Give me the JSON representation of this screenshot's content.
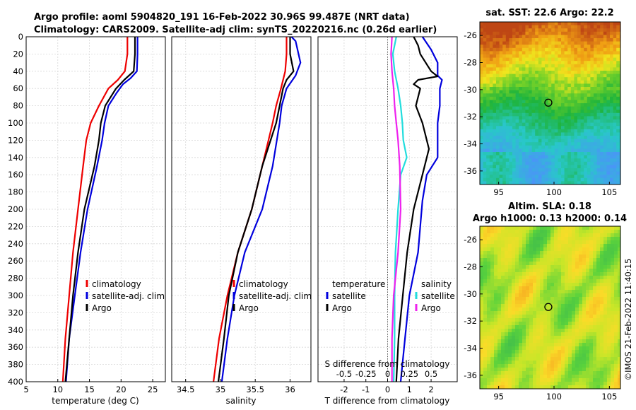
{
  "header": {
    "line1": "Argo profile: aoml 5904820_191 16-Feb-2022 30.96S 99.487E (NRT data)",
    "line2": "Climatology: CARS2009. Satellite-adj clim: synTS_20220216.nc (0.26d earlier)"
  },
  "colors": {
    "red": "#ee0000",
    "blue": "#0000dd",
    "black": "#000000",
    "cyan": "#22dddd",
    "magenta": "#ee22ee"
  },
  "chart_data": [
    {
      "type": "line",
      "name": "temperature",
      "xlabel": "temperature (deg C)",
      "xlim": [
        5,
        27
      ],
      "xticks": [
        5,
        10,
        15,
        20,
        25
      ],
      "ylim": [
        400,
        0
      ],
      "yticks": [
        0,
        20,
        40,
        60,
        80,
        100,
        120,
        140,
        160,
        180,
        200,
        220,
        240,
        260,
        280,
        300,
        320,
        340,
        360,
        380,
        400
      ],
      "legend": [
        "climatology",
        "satellite-adj. clim",
        "Argo"
      ],
      "series": [
        {
          "name": "climatology",
          "color": "red",
          "depth": [
            0,
            20,
            40,
            50,
            60,
            80,
            100,
            120,
            150,
            200,
            250,
            300,
            350,
            400
          ],
          "values": [
            21.0,
            21.0,
            20.6,
            19.5,
            18.0,
            16.5,
            15.2,
            14.5,
            14.0,
            13.2,
            12.4,
            11.8,
            11.2,
            10.8
          ]
        },
        {
          "name": "satellite-adj. clim",
          "color": "blue",
          "depth": [
            0,
            20,
            40,
            48,
            55,
            65,
            80,
            100,
            120,
            150,
            200,
            250,
            300,
            350,
            400
          ],
          "values": [
            22.6,
            22.6,
            22.5,
            21.5,
            20.3,
            19.3,
            18.0,
            17.4,
            17.0,
            16.2,
            14.7,
            13.6,
            12.7,
            11.8,
            11.3
          ]
        },
        {
          "name": "Argo",
          "color": "black",
          "depth": [
            0,
            20,
            40,
            50,
            60,
            80,
            100,
            120,
            150,
            200,
            250,
            300,
            350,
            400
          ],
          "values": [
            22.2,
            22.2,
            22.0,
            20.5,
            19.2,
            17.5,
            16.8,
            16.5,
            15.8,
            14.2,
            13.2,
            12.4,
            11.8,
            11.2
          ]
        }
      ]
    },
    {
      "type": "line",
      "name": "salinity",
      "xlabel": "salinity",
      "xlim": [
        34.3,
        36.3
      ],
      "xticks": [
        34.5,
        35,
        35.5,
        36
      ],
      "xticklabels": [
        "34.5",
        "35",
        "35.5",
        "36"
      ],
      "ylim": [
        400,
        0
      ],
      "legend": [
        "climatology",
        "satellite-adj. clim",
        "Argo"
      ],
      "series": [
        {
          "name": "climatology",
          "color": "red",
          "depth": [
            0,
            20,
            40,
            60,
            80,
            100,
            150,
            200,
            250,
            300,
            350,
            400
          ],
          "values": [
            35.95,
            35.95,
            35.93,
            35.87,
            35.8,
            35.75,
            35.6,
            35.45,
            35.25,
            35.1,
            34.98,
            34.9
          ]
        },
        {
          "name": "satellite-adj. clim",
          "color": "blue",
          "depth": [
            0,
            5,
            30,
            45,
            60,
            80,
            100,
            150,
            200,
            250,
            300,
            350,
            400
          ],
          "values": [
            36.02,
            36.08,
            36.15,
            36.08,
            35.95,
            35.88,
            35.85,
            35.75,
            35.6,
            35.35,
            35.2,
            35.1,
            35.02
          ]
        },
        {
          "name": "Argo",
          "color": "black",
          "depth": [
            0,
            20,
            40,
            50,
            60,
            80,
            100,
            150,
            200,
            250,
            300,
            350,
            400
          ],
          "values": [
            36.0,
            36.0,
            36.05,
            35.95,
            35.9,
            35.85,
            35.8,
            35.6,
            35.45,
            35.25,
            35.12,
            35.05,
            34.97
          ]
        }
      ]
    },
    {
      "type": "line",
      "name": "difference from climatology",
      "xlabel": "T difference from climatology",
      "xlabel2": "S difference from climatology",
      "xlim": [
        -3.2,
        3.2
      ],
      "xticks": [
        -2,
        -1,
        0,
        1,
        2
      ],
      "xticks2": [
        -0.5,
        -0.25,
        0,
        0.25,
        0.5
      ],
      "xticklabels2": [
        "-0.5",
        "-0.25",
        "0",
        "0.25",
        "0.5"
      ],
      "s_scale": 4,
      "ylim": [
        400,
        0
      ],
      "legend_left_title": "temperature",
      "legend_right_title": "salinity",
      "legend": [
        "satellite",
        "Argo",
        "satellite",
        "Argo"
      ],
      "series": [
        {
          "name": "temperature satellite",
          "color": "blue",
          "depth": [
            0,
            15,
            30,
            45,
            50,
            60,
            80,
            100,
            120,
            140,
            160,
            190,
            220,
            250,
            300,
            350,
            400
          ],
          "values": [
            1.6,
            2.0,
            2.3,
            2.3,
            2.5,
            2.4,
            2.4,
            2.3,
            2.3,
            2.3,
            1.8,
            1.6,
            1.5,
            1.4,
            1.0,
            0.8,
            0.6
          ]
        },
        {
          "name": "temperature Argo",
          "color": "black",
          "depth": [
            0,
            10,
            20,
            40,
            46,
            50,
            55,
            60,
            80,
            100,
            130,
            160,
            200,
            250,
            300,
            350,
            400
          ],
          "values": [
            1.2,
            1.4,
            1.5,
            2.0,
            2.3,
            1.4,
            1.2,
            1.5,
            1.3,
            1.6,
            1.9,
            1.6,
            1.2,
            0.9,
            0.7,
            0.5,
            0.4
          ]
        },
        {
          "name": "salinity satellite",
          "color": "cyan",
          "depth": [
            0,
            20,
            40,
            60,
            80,
            100,
            120,
            140,
            160,
            200,
            250,
            300,
            350,
            400
          ],
          "values": [
            0.1,
            0.06,
            0.08,
            0.12,
            0.15,
            0.17,
            0.18,
            0.22,
            0.15,
            0.12,
            0.09,
            0.08,
            0.08,
            0.07
          ]
        },
        {
          "name": "salinity Argo",
          "color": "magenta",
          "depth": [
            0,
            20,
            40,
            60,
            80,
            100,
            120,
            150,
            200,
            250,
            300,
            350,
            400
          ],
          "values": [
            0.05,
            0.04,
            0.05,
            0.07,
            0.08,
            0.1,
            0.12,
            0.14,
            0.15,
            0.12,
            0.07,
            0.05,
            0.05
          ]
        }
      ]
    }
  ],
  "map_sst": {
    "title": "sat. SST: 22.6  Argo: 22.2",
    "xticks": [
      95,
      100,
      105
    ],
    "yticks": [
      -26,
      -28,
      -30,
      -32,
      -34,
      -36
    ],
    "lon_range": [
      93.3,
      106
    ],
    "lat_range": [
      -37,
      -25
    ],
    "marker": {
      "lon": 99.487,
      "lat": -30.96
    }
  },
  "map_sla": {
    "title1": "Altim. SLA: 0.18",
    "title2": "Argo h1000: 0.13  h2000: 0.14",
    "xticks": [
      95,
      100,
      105
    ],
    "yticks": [
      -26,
      -28,
      -30,
      -32,
      -34,
      -36
    ],
    "lon_range": [
      93.3,
      106
    ],
    "lat_range": [
      -37,
      -25
    ],
    "marker": {
      "lon": 99.487,
      "lat": -30.96
    }
  },
  "credit": "©IMOS 21-Feb-2022 11:40:15"
}
